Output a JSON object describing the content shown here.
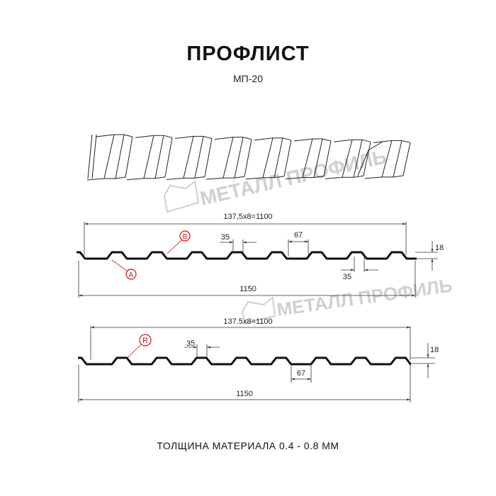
{
  "title": "ПРОФЛИСТ",
  "subtitle": "МП-20",
  "footer": "ТОЛЩИНА МАТЕРИАЛА 0.4 - 0.8 ММ",
  "watermark": "МЕТАЛЛ ПРОФИЛЬ",
  "colors": {
    "profile": "#111111",
    "marker": "#e01010",
    "dimension": "#333333",
    "watermark": "#c8c8c8"
  },
  "profile_1": {
    "pitch_label": "137,5x8=1100",
    "width_label": "1150",
    "height_label": "18",
    "rib_top_label": "35",
    "rib_bottom_label": "35",
    "rib_base_label": "67",
    "marker_a": "A",
    "marker_b": "B"
  },
  "profile_2": {
    "pitch_label": "137.5x8=1100",
    "width_label": "1150",
    "height_label": "18",
    "rib_top_label": "35",
    "rib_base_label": "67",
    "marker_r": "R"
  }
}
